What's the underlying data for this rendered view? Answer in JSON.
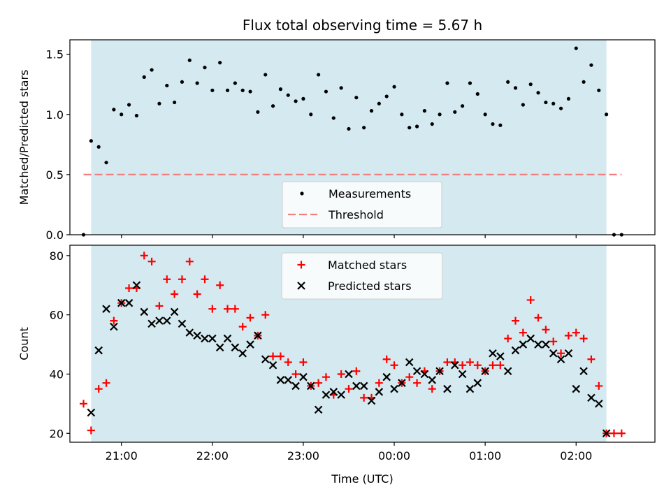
{
  "chart_data": [
    {
      "type": "scatter",
      "title": "Flux total observing time = 5.67 h",
      "xlabel": "",
      "ylabel": "Matched/Predicted stars",
      "ylim": [
        0,
        1.62
      ],
      "yticks": [
        0.0,
        0.5,
        1.0,
        1.5
      ],
      "ytick_labels": [
        "0.0",
        "0.5",
        "1.0",
        "1.5"
      ],
      "xlim": [
        "20:26",
        "02:52"
      ],
      "xticks": [
        "21:00",
        "22:00",
        "23:00",
        "00:00",
        "01:00",
        "02:00"
      ],
      "observing_window": [
        "20:40",
        "02:20"
      ],
      "observing_window_color": "#d4eaf0",
      "legend": {
        "placement": "lower-center",
        "entries": [
          "Measurements",
          "Threshold"
        ]
      },
      "series": [
        {
          "name": "Measurements",
          "color": "#000000",
          "marker": "dot",
          "points": [
            [
              "20:35",
              0.0
            ],
            [
              "20:40",
              0.78
            ],
            [
              "20:45",
              0.73
            ],
            [
              "20:50",
              0.6
            ],
            [
              "20:55",
              1.04
            ],
            [
              "21:00",
              1.0
            ],
            [
              "21:05",
              1.08
            ],
            [
              "21:10",
              0.99
            ],
            [
              "21:15",
              1.31
            ],
            [
              "21:20",
              1.37
            ],
            [
              "21:25",
              1.09
            ],
            [
              "21:30",
              1.24
            ],
            [
              "21:35",
              1.1
            ],
            [
              "21:40",
              1.27
            ],
            [
              "21:45",
              1.45
            ],
            [
              "21:50",
              1.26
            ],
            [
              "21:55",
              1.39
            ],
            [
              "22:00",
              1.2
            ],
            [
              "22:05",
              1.43
            ],
            [
              "22:10",
              1.2
            ],
            [
              "22:15",
              1.26
            ],
            [
              "22:20",
              1.2
            ],
            [
              "22:25",
              1.19
            ],
            [
              "22:30",
              1.02
            ],
            [
              "22:35",
              1.33
            ],
            [
              "22:40",
              1.07
            ],
            [
              "22:45",
              1.21
            ],
            [
              "22:50",
              1.16
            ],
            [
              "22:55",
              1.11
            ],
            [
              "23:00",
              1.13
            ],
            [
              "23:05",
              1.0
            ],
            [
              "23:10",
              1.33
            ],
            [
              "23:15",
              1.19
            ],
            [
              "23:20",
              0.97
            ],
            [
              "23:25",
              1.22
            ],
            [
              "23:30",
              0.88
            ],
            [
              "23:35",
              1.14
            ],
            [
              "23:40",
              0.89
            ],
            [
              "23:45",
              1.03
            ],
            [
              "23:50",
              1.09
            ],
            [
              "23:55",
              1.15
            ],
            [
              "00:00",
              1.23
            ],
            [
              "00:05",
              1.0
            ],
            [
              "00:10",
              0.89
            ],
            [
              "00:15",
              0.9
            ],
            [
              "00:20",
              1.03
            ],
            [
              "00:25",
              0.92
            ],
            [
              "00:30",
              1.0
            ],
            [
              "00:35",
              1.26
            ],
            [
              "00:40",
              1.02
            ],
            [
              "00:45",
              1.07
            ],
            [
              "00:50",
              1.26
            ],
            [
              "00:55",
              1.17
            ],
            [
              "01:00",
              1.0
            ],
            [
              "01:05",
              0.92
            ],
            [
              "01:10",
              0.91
            ],
            [
              "01:15",
              1.27
            ],
            [
              "01:20",
              1.22
            ],
            [
              "01:25",
              1.08
            ],
            [
              "01:30",
              1.25
            ],
            [
              "01:35",
              1.18
            ],
            [
              "01:40",
              1.1
            ],
            [
              "01:45",
              1.09
            ],
            [
              "01:50",
              1.05
            ],
            [
              "01:55",
              1.13
            ],
            [
              "02:00",
              1.55
            ],
            [
              "02:05",
              1.27
            ],
            [
              "02:10",
              1.41
            ],
            [
              "02:15",
              1.2
            ],
            [
              "02:20",
              1.0
            ],
            [
              "02:25",
              0.0
            ],
            [
              "02:30",
              0.0
            ]
          ]
        },
        {
          "name": "Threshold",
          "color": "#f08080",
          "style": "dashed",
          "points": [
            [
              "20:35",
              0.5
            ],
            [
              "02:30",
              0.5
            ]
          ]
        }
      ]
    },
    {
      "type": "scatter",
      "title": "",
      "xlabel": "Time (UTC)",
      "ylabel": "Count",
      "ylim": [
        17,
        83.5
      ],
      "yticks": [
        20,
        40,
        60,
        80
      ],
      "ytick_labels": [
        "20",
        "40",
        "60",
        "80"
      ],
      "xlim": [
        "20:26",
        "02:52"
      ],
      "xticks": [
        "21:00",
        "22:00",
        "23:00",
        "00:00",
        "01:00",
        "02:00"
      ],
      "xtick_labels": [
        "21:00",
        "22:00",
        "23:00",
        "00:00",
        "01:00",
        "02:00"
      ],
      "observing_window": [
        "20:40",
        "02:20"
      ],
      "observing_window_color": "#d4eaf0",
      "legend": {
        "placement": "top-center",
        "entries": [
          "Matched stars",
          "Predicted stars"
        ]
      },
      "series": [
        {
          "name": "Matched stars",
          "color": "#ff0000",
          "marker": "plus",
          "points": [
            [
              "20:35",
              30
            ],
            [
              "20:40",
              21
            ],
            [
              "20:45",
              35
            ],
            [
              "20:50",
              37
            ],
            [
              "20:55",
              58
            ],
            [
              "21:00",
              64
            ],
            [
              "21:05",
              69
            ],
            [
              "21:10",
              69
            ],
            [
              "21:15",
              80
            ],
            [
              "21:20",
              78
            ],
            [
              "21:25",
              63
            ],
            [
              "21:30",
              72
            ],
            [
              "21:35",
              67
            ],
            [
              "21:40",
              72
            ],
            [
              "21:45",
              78
            ],
            [
              "21:50",
              67
            ],
            [
              "21:55",
              72
            ],
            [
              "22:00",
              62
            ],
            [
              "22:05",
              70
            ],
            [
              "22:10",
              62
            ],
            [
              "22:15",
              62
            ],
            [
              "22:20",
              56
            ],
            [
              "22:25",
              59
            ],
            [
              "22:30",
              53
            ],
            [
              "22:35",
              60
            ],
            [
              "22:40",
              46
            ],
            [
              "22:45",
              46
            ],
            [
              "22:50",
              44
            ],
            [
              "22:55",
              40
            ],
            [
              "23:00",
              44
            ],
            [
              "23:05",
              36
            ],
            [
              "23:10",
              37
            ],
            [
              "23:15",
              39
            ],
            [
              "23:20",
              33
            ],
            [
              "23:25",
              40
            ],
            [
              "23:30",
              35
            ],
            [
              "23:35",
              41
            ],
            [
              "23:40",
              32
            ],
            [
              "23:45",
              32
            ],
            [
              "23:50",
              37
            ],
            [
              "23:55",
              45
            ],
            [
              "00:00",
              43
            ],
            [
              "00:05",
              37
            ],
            [
              "00:10",
              39
            ],
            [
              "00:15",
              37
            ],
            [
              "00:20",
              41
            ],
            [
              "00:25",
              35
            ],
            [
              "00:30",
              41
            ],
            [
              "00:35",
              44
            ],
            [
              "00:40",
              44
            ],
            [
              "00:45",
              43
            ],
            [
              "00:50",
              44
            ],
            [
              "00:55",
              43
            ],
            [
              "01:00",
              41
            ],
            [
              "01:05",
              43
            ],
            [
              "01:10",
              43
            ],
            [
              "01:15",
              52
            ],
            [
              "01:20",
              58
            ],
            [
              "01:25",
              54
            ],
            [
              "01:30",
              65
            ],
            [
              "01:35",
              59
            ],
            [
              "01:40",
              55
            ],
            [
              "01:45",
              51
            ],
            [
              "01:50",
              47
            ],
            [
              "01:55",
              53
            ],
            [
              "02:00",
              54
            ],
            [
              "02:05",
              52
            ],
            [
              "02:10",
              45
            ],
            [
              "02:15",
              36
            ],
            [
              "02:20",
              20
            ],
            [
              "02:25",
              20
            ],
            [
              "02:30",
              20
            ]
          ]
        },
        {
          "name": "Predicted stars",
          "color": "#000000",
          "marker": "x",
          "points": [
            [
              "20:40",
              27
            ],
            [
              "20:45",
              48
            ],
            [
              "20:50",
              62
            ],
            [
              "20:55",
              56
            ],
            [
              "21:00",
              64
            ],
            [
              "21:05",
              64
            ],
            [
              "21:10",
              70
            ],
            [
              "21:15",
              61
            ],
            [
              "21:20",
              57
            ],
            [
              "21:25",
              58
            ],
            [
              "21:30",
              58
            ],
            [
              "21:35",
              61
            ],
            [
              "21:40",
              57
            ],
            [
              "21:45",
              54
            ],
            [
              "21:50",
              53
            ],
            [
              "21:55",
              52
            ],
            [
              "22:00",
              52
            ],
            [
              "22:05",
              49
            ],
            [
              "22:10",
              52
            ],
            [
              "22:15",
              49
            ],
            [
              "22:20",
              47
            ],
            [
              "22:25",
              50
            ],
            [
              "22:30",
              53
            ],
            [
              "22:35",
              45
            ],
            [
              "22:40",
              43
            ],
            [
              "22:45",
              38
            ],
            [
              "22:50",
              38
            ],
            [
              "22:55",
              36
            ],
            [
              "23:00",
              39
            ],
            [
              "23:05",
              36
            ],
            [
              "23:10",
              28
            ],
            [
              "23:15",
              33
            ],
            [
              "23:20",
              34
            ],
            [
              "23:25",
              33
            ],
            [
              "23:30",
              40
            ],
            [
              "23:35",
              36
            ],
            [
              "23:40",
              36
            ],
            [
              "23:45",
              31
            ],
            [
              "23:50",
              34
            ],
            [
              "23:55",
              39
            ],
            [
              "00:00",
              35
            ],
            [
              "00:05",
              37
            ],
            [
              "00:10",
              44
            ],
            [
              "00:15",
              41
            ],
            [
              "00:20",
              40
            ],
            [
              "00:25",
              38
            ],
            [
              "00:30",
              41
            ],
            [
              "00:35",
              35
            ],
            [
              "00:40",
              43
            ],
            [
              "00:45",
              40
            ],
            [
              "00:50",
              35
            ],
            [
              "00:55",
              37
            ],
            [
              "01:00",
              41
            ],
            [
              "01:05",
              47
            ],
            [
              "01:10",
              46
            ],
            [
              "01:15",
              41
            ],
            [
              "01:20",
              48
            ],
            [
              "01:25",
              50
            ],
            [
              "01:30",
              52
            ],
            [
              "01:35",
              50
            ],
            [
              "01:40",
              50
            ],
            [
              "01:45",
              47
            ],
            [
              "01:50",
              45
            ],
            [
              "01:55",
              47
            ],
            [
              "02:00",
              35
            ],
            [
              "02:05",
              41
            ],
            [
              "02:10",
              32
            ],
            [
              "02:15",
              30
            ],
            [
              "02:20",
              20
            ]
          ]
        }
      ]
    }
  ]
}
